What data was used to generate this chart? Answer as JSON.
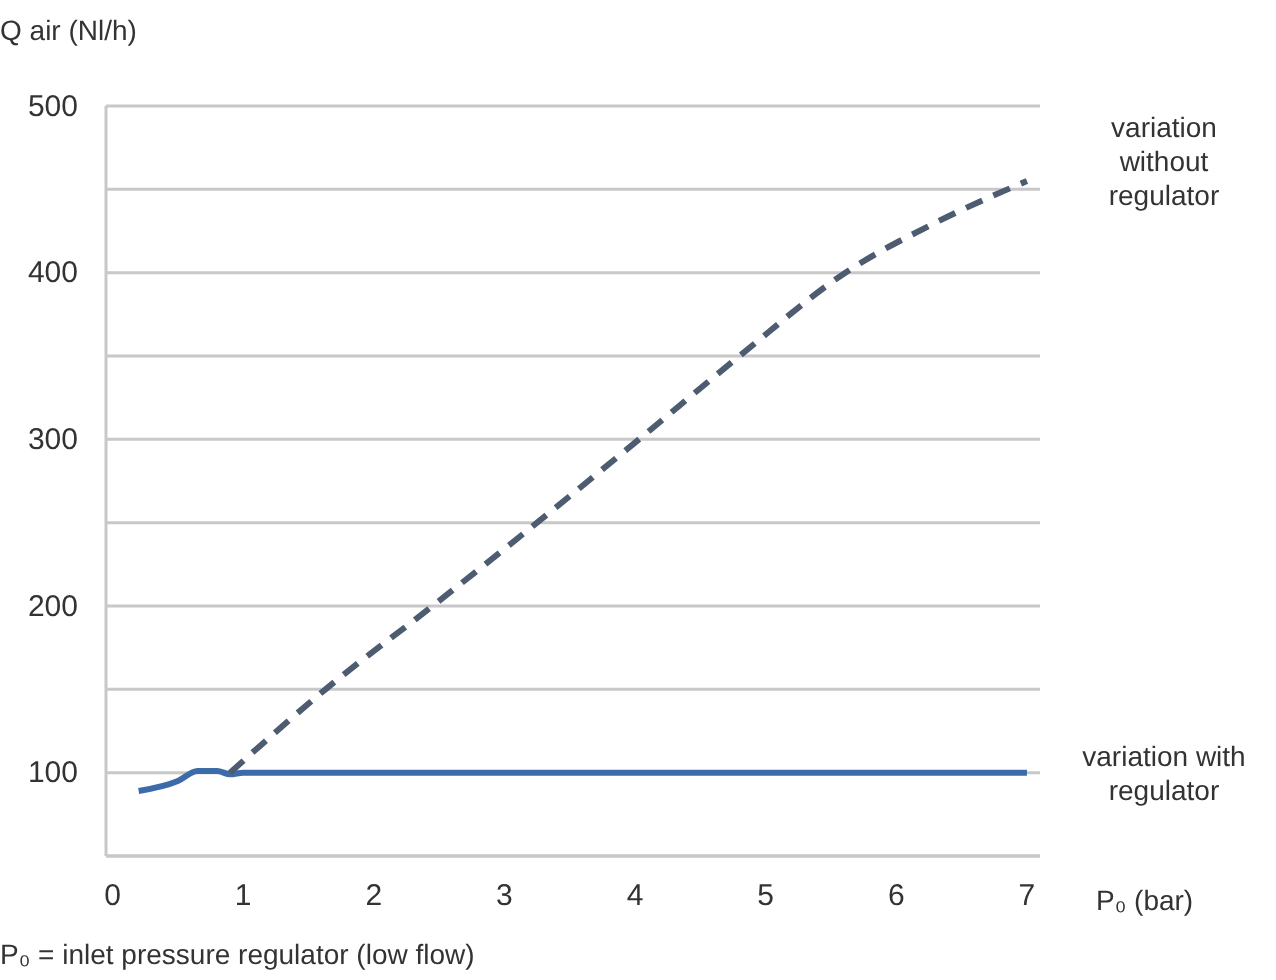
{
  "chart_data": {
    "type": "line",
    "ylabel": "Q air (Nl/h)",
    "xlabel": "P₀ (bar)",
    "annotations": [
      "P₀ = inlet pressure regulator (low flow)"
    ],
    "xlim": [
      -0.05,
      7.1
    ],
    "xticks": [
      0,
      1,
      2,
      3,
      4,
      5,
      6,
      7
    ],
    "ylim": [
      50,
      500
    ],
    "yticks": [
      {
        "value": 50,
        "label": null
      },
      100,
      {
        "value": 150,
        "label": null
      },
      200,
      {
        "value": 250,
        "label": null
      },
      300,
      {
        "value": 350,
        "label": null
      },
      400,
      {
        "value": 450,
        "label": null
      },
      500
    ],
    "grid": "y",
    "marker": "none",
    "legend": false,
    "series": [
      {
        "name": "variation with regulator",
        "color": "#3d6aa8",
        "line_style": "solid",
        "x": [
          0.2,
          0.5,
          0.65,
          0.8,
          0.9,
          1.0,
          7
        ],
        "values": [
          89,
          95,
          101,
          101,
          99,
          100,
          100
        ]
      },
      {
        "name": "variation without regulator",
        "color": "#4d5c70",
        "line_style": "dashed",
        "x": [
          0.9,
          1.63,
          2.45,
          3.25,
          4.03,
          4.8,
          5.61,
          6.3,
          7
        ],
        "values": [
          100,
          150,
          200,
          250,
          300,
          350,
          400,
          430,
          455
        ]
      }
    ]
  }
}
